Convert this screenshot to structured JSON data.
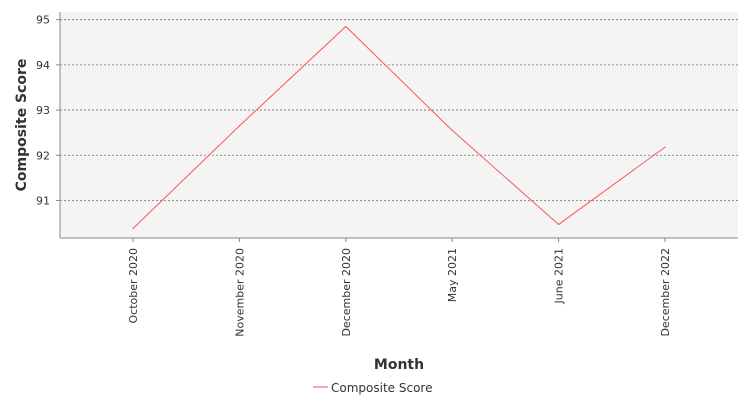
{
  "chart_data": {
    "type": "line",
    "categories": [
      "October 2020",
      "November 2020",
      "December 2020",
      "May 2021",
      "June 2021",
      "December 2022"
    ],
    "series": [
      {
        "name": "Composite Score",
        "values": [
          90.38,
          92.65,
          94.85,
          92.55,
          90.47,
          92.18
        ],
        "color": "#ff5555"
      }
    ],
    "title": "",
    "xlabel": "Month",
    "ylabel": "Composite Score",
    "ylim": [
      90.17,
      95.17
    ],
    "yticks": [
      "91",
      "92",
      "93",
      "94",
      "95"
    ],
    "grid": true,
    "legend_position": "bottom",
    "plot_background": "#f4f4f4"
  }
}
